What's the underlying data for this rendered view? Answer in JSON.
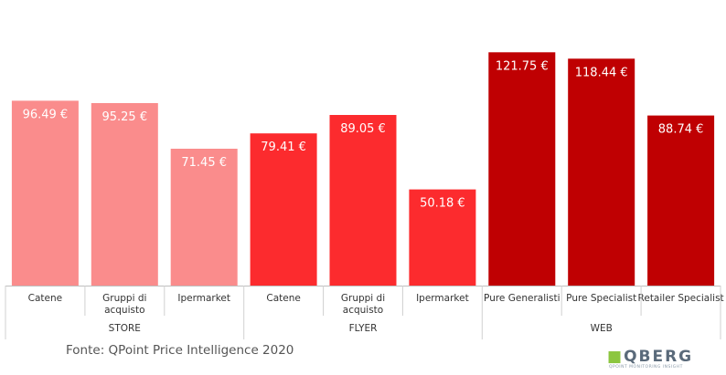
{
  "chart_data": {
    "type": "bar",
    "ylim": [
      0,
      130
    ],
    "value_suffix": " €",
    "groups": [
      {
        "name": "STORE",
        "color": "#fa8c8c",
        "bars": [
          {
            "label": "Catene",
            "value": 96.49
          },
          {
            "label": "Gruppi di acquisto",
            "value": 95.25
          },
          {
            "label": "Ipermarket",
            "value": 71.45
          }
        ]
      },
      {
        "name": "FLYER",
        "color": "#fc2b2e",
        "bars": [
          {
            "label": "Catene",
            "value": 79.41
          },
          {
            "label": "Gruppi di acquisto",
            "value": 89.05
          },
          {
            "label": "Ipermarket",
            "value": 50.18
          }
        ]
      },
      {
        "name": "WEB",
        "color": "#bf0002",
        "bars": [
          {
            "label": "Pure Generalisti",
            "value": 121.75
          },
          {
            "label": "Pure Specialist",
            "value": 118.44
          },
          {
            "label": "Retailer Specialist",
            "value": 88.74
          }
        ]
      }
    ]
  },
  "source": "Fonte: QPoint Price Intelligence 2020",
  "logo": {
    "text": "QBERG",
    "tagline": "QPOINT MONITORING INSIGHT"
  }
}
